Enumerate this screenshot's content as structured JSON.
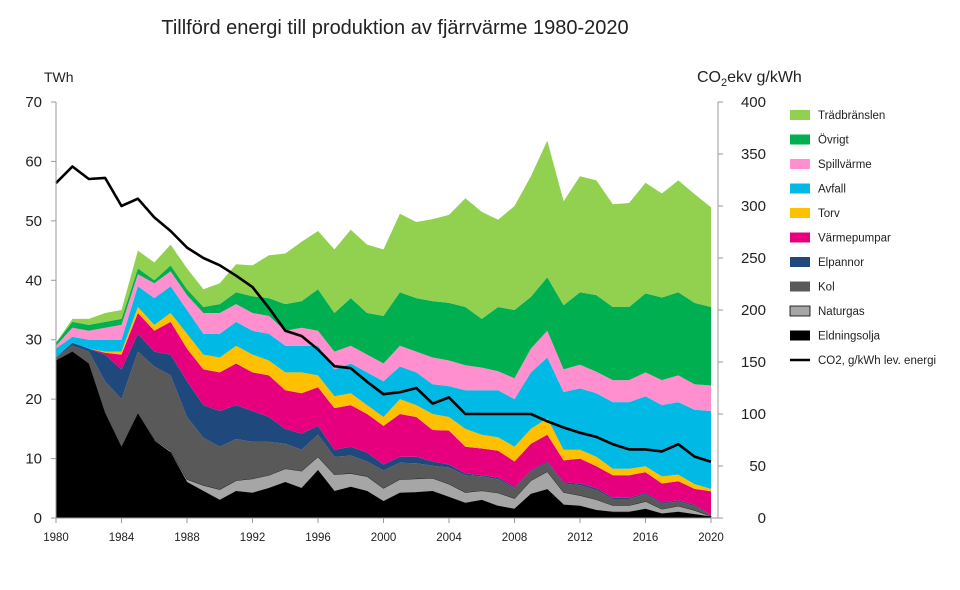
{
  "chart_data": {
    "type": "area",
    "stacked": true,
    "title": "Tillförd energi till produktion av fjärrvärme 1980-2020",
    "ylabel_left": "TWh",
    "ylabel_right_main": "CO",
    "ylabel_right_sub": "2",
    "ylabel_right_rest": "ekv g/kWh",
    "xlim": [
      1980,
      2020
    ],
    "ylim_left": [
      0,
      70
    ],
    "ylim_right": [
      0,
      400
    ],
    "x_ticks": [
      1980,
      1984,
      1988,
      1992,
      1996,
      2000,
      2004,
      2008,
      2012,
      2016,
      2020
    ],
    "y_ticks_left": [
      0,
      10,
      20,
      30,
      40,
      50,
      60,
      70
    ],
    "y_ticks_right": [
      0,
      50,
      100,
      150,
      200,
      250,
      300,
      350,
      400
    ],
    "grid": false,
    "legend_position": "right",
    "x": [
      1980,
      1981,
      1982,
      1983,
      1984,
      1985,
      1986,
      1987,
      1988,
      1989,
      1990,
      1991,
      1992,
      1993,
      1994,
      1995,
      1996,
      1997,
      1998,
      1999,
      2000,
      2001,
      2002,
      2003,
      2004,
      2005,
      2006,
      2007,
      2008,
      2009,
      2010,
      2011,
      2012,
      2013,
      2014,
      2015,
      2016,
      2017,
      2018,
      2019,
      2020
    ],
    "series": [
      {
        "name": "Eldningsolja",
        "color": "#000000",
        "values": [
          26.5,
          28,
          26,
          17.5,
          12,
          17.5,
          13,
          11,
          6,
          4.5,
          3,
          4.5,
          4.2,
          5,
          6,
          5,
          8,
          4.5,
          5.2,
          4.5,
          2.8,
          4.2,
          4.3,
          4.5,
          3.5,
          2.5,
          3,
          2,
          1.5,
          4,
          4.8,
          2.2,
          2,
          1.3,
          1,
          1,
          1.5,
          0.7,
          1,
          0.6,
          0.2
        ]
      },
      {
        "name": "Naturgas",
        "color": "#a6a6a6",
        "values": [
          0,
          0,
          0,
          0.2,
          0,
          0.1,
          0.2,
          0.3,
          0.5,
          1,
          1.8,
          1.8,
          2.4,
          2.2,
          2.3,
          2.9,
          2.3,
          2.8,
          2.3,
          2.5,
          2.2,
          2.3,
          2.3,
          2.2,
          2.2,
          1.8,
          1.6,
          2.2,
          1.8,
          2.3,
          3,
          2.1,
          1.8,
          1.8,
          1.1,
          1.1,
          1.3,
          0.8,
          1,
          0.7,
          0.1
        ]
      },
      {
        "name": "Kol",
        "color": "#595959",
        "values": [
          0.5,
          1,
          2,
          5.3,
          8,
          10.4,
          12.3,
          12.7,
          10.5,
          8,
          7.2,
          7,
          6.2,
          5.6,
          4.2,
          3.6,
          3.7,
          3,
          3,
          2.5,
          3,
          2.8,
          2.6,
          2.1,
          2.8,
          2.9,
          2.4,
          2.3,
          1.7,
          1.5,
          1.5,
          1.5,
          1.7,
          1.6,
          1.1,
          1.1,
          1.2,
          0.9,
          0.8,
          0.7,
          0.1
        ]
      },
      {
        "name": "Elpannor",
        "color": "#1f497d",
        "values": [
          0,
          0.5,
          0.5,
          4.5,
          5,
          3,
          2.5,
          3.5,
          6,
          5.5,
          6,
          5.7,
          5.2,
          4.2,
          2.5,
          2.7,
          1.5,
          1.2,
          1.5,
          1.5,
          1,
          1,
          1.1,
          0.7,
          0.5,
          0.3,
          0.2,
          0.3,
          0.2,
          0.2,
          0.2,
          0.2,
          0.3,
          0.3,
          0.2,
          0.2,
          0.2,
          0.2,
          0.2,
          0.2,
          0.1
        ]
      },
      {
        "name": "Värmepumpar",
        "color": "#e6007e",
        "values": [
          0,
          0,
          0,
          0.3,
          2.5,
          3.5,
          3.5,
          5.5,
          5.5,
          6,
          6.5,
          7,
          6.5,
          7,
          6.5,
          6.8,
          6.5,
          7,
          7,
          6.5,
          6.5,
          7.2,
          6.7,
          5.3,
          5.7,
          4.5,
          4.5,
          4.5,
          4.3,
          4.5,
          4.5,
          3.7,
          4.2,
          3.7,
          3.8,
          3.8,
          3.5,
          3.2,
          3.2,
          2.7,
          4
        ]
      },
      {
        "name": "Torv",
        "color": "#ffc000",
        "values": [
          0,
          0,
          0,
          0.2,
          0.5,
          1,
          1,
          1.5,
          2.5,
          2.5,
          2.5,
          3,
          3,
          2.5,
          3,
          3.5,
          2,
          2,
          2,
          1.5,
          1.5,
          2.5,
          2,
          2.7,
          2.3,
          3,
          2.3,
          2.3,
          2.5,
          2.5,
          2.8,
          1.8,
          1.5,
          1.6,
          1.1,
          1.1,
          1,
          1.2,
          1.1,
          0.8,
          0.4
        ]
      },
      {
        "name": "Avfall",
        "color": "#00b9e4",
        "values": [
          1.5,
          1,
          1.5,
          2,
          2,
          3.5,
          4.5,
          4.5,
          4,
          3.5,
          4,
          4,
          4,
          4.5,
          4.5,
          4.5,
          5,
          4.5,
          5,
          5.5,
          6,
          5.5,
          5.5,
          5,
          5.2,
          6.5,
          7.5,
          7.9,
          8,
          9.5,
          10.2,
          9.7,
          10.3,
          10.7,
          11.2,
          11.2,
          11.8,
          12,
          12.2,
          12.5,
          13.1
        ]
      },
      {
        "name": "Spillvärme",
        "color": "#ff8fcf",
        "values": [
          0.5,
          1.5,
          1.5,
          2,
          2.5,
          2,
          2.5,
          2.5,
          2.5,
          3.5,
          3.5,
          3,
          3,
          3,
          2.5,
          3,
          2.5,
          3,
          3,
          3,
          3,
          3.5,
          3.5,
          4.5,
          4.3,
          4.2,
          3.8,
          3.2,
          3.5,
          4,
          4.5,
          3.8,
          4,
          3.6,
          3.7,
          3.7,
          4,
          4.2,
          4.5,
          4.3,
          4.3
        ]
      },
      {
        "name": "Övrigt",
        "color": "#00b050",
        "values": [
          0.5,
          1,
          1,
          1,
          1,
          1,
          0.5,
          1,
          1,
          1,
          1.5,
          2,
          2.8,
          3,
          4.5,
          4.5,
          7,
          6.5,
          8,
          7,
          8,
          9,
          9,
          9.5,
          9.7,
          9.8,
          8.2,
          10.8,
          11.5,
          8.7,
          9,
          10.8,
          12.2,
          12.9,
          12.3,
          12.3,
          13.3,
          13.9,
          14,
          13.7,
          13.2
        ]
      },
      {
        "name": "Trädbränslen",
        "color": "#92d050",
        "values": [
          0,
          0.5,
          1,
          1.5,
          1.5,
          3,
          3,
          3.5,
          3.5,
          3,
          3.5,
          4.7,
          5.2,
          7.2,
          8.5,
          10,
          9.8,
          10.7,
          11.5,
          11.5,
          11.2,
          13.2,
          12.8,
          13.8,
          14.8,
          18.3,
          18,
          14.7,
          17.5,
          20.3,
          23,
          17.5,
          19.5,
          19.3,
          17.3,
          17.5,
          18.6,
          17.5,
          18.8,
          18.3,
          16.8
        ]
      }
    ],
    "line_series": {
      "name": "CO2, g/kWh lev. energi",
      "color": "#000000",
      "axis": "right",
      "values": [
        322,
        338,
        326,
        327,
        300,
        307,
        289,
        276,
        260,
        250,
        243,
        233,
        222,
        202,
        180,
        175,
        162,
        146,
        144,
        131,
        119,
        121,
        125,
        110,
        116,
        100,
        100,
        100,
        100,
        100,
        93,
        87,
        82,
        78,
        71,
        66,
        66,
        64,
        71,
        59,
        54
      ]
    },
    "legend_order": [
      "Trädbränslen",
      "Övrigt",
      "Spillvärme",
      "Avfall",
      "Torv",
      "Värmepumpar",
      "Elpannor",
      "Kol",
      "Naturgas",
      "Eldningsolja",
      "CO2, g/kWh lev. energi"
    ]
  }
}
